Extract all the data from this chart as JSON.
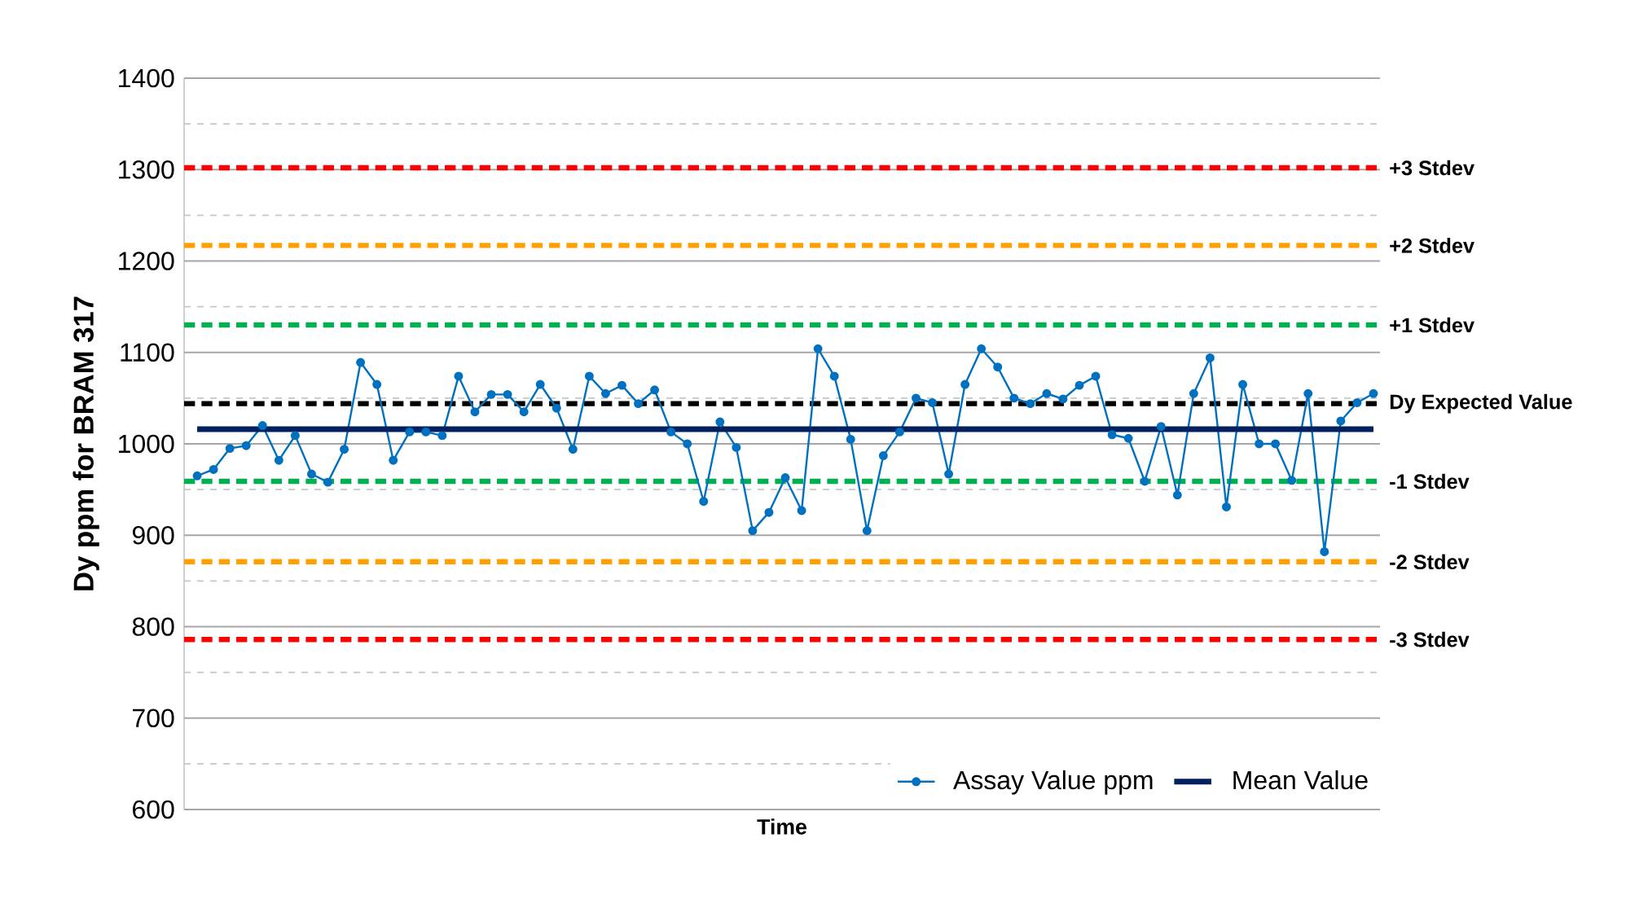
{
  "chart_data": {
    "type": "line",
    "xlabel": "Time",
    "ylabel": "Dy ppm for BRAM 317",
    "categories": [
      null,
      null,
      null,
      null,
      null,
      null,
      null,
      null,
      null,
      null,
      null,
      null,
      null,
      null,
      null,
      null,
      null,
      null,
      null,
      null,
      null,
      null,
      null,
      null,
      null,
      null,
      null,
      null,
      null,
      null,
      null,
      null,
      null,
      null,
      null,
      null,
      null,
      null,
      null,
      null,
      null,
      null,
      null,
      null,
      null,
      null,
      null,
      null,
      null,
      null,
      null,
      null,
      null,
      null,
      null,
      null,
      null,
      null,
      null,
      null,
      null,
      null,
      null,
      null,
      null,
      null,
      null,
      null,
      null,
      null,
      null,
      null,
      null
    ],
    "series": [
      {
        "name": "Assay Value ppm",
        "color": "#0070c0",
        "marker": "circle",
        "values": [
          965,
          972,
          995,
          998,
          1020,
          982,
          1009,
          967,
          958,
          994,
          1089,
          1065,
          982,
          1013,
          1013,
          1009,
          1074,
          1035,
          1054,
          1054,
          1035,
          1065,
          1039,
          994,
          1074,
          1055,
          1064,
          1044,
          1059,
          1013,
          1000,
          937,
          1024,
          996,
          905,
          925,
          963,
          927,
          1104,
          1074,
          1005,
          905,
          987,
          1013,
          1050,
          1045,
          967,
          1065,
          1104,
          1084,
          1050,
          1044,
          1055,
          1049,
          1064,
          1074,
          1010,
          1006,
          959,
          1019,
          944,
          1055,
          1094,
          931,
          1065,
          1000,
          1000,
          960,
          1055,
          882,
          1025,
          1045,
          1055
        ]
      },
      {
        "name": "Mean Value",
        "color": "#002060",
        "marker": "none",
        "values": [
          1016,
          1016,
          1016,
          1016,
          1016,
          1016,
          1016,
          1016,
          1016,
          1016,
          1016,
          1016,
          1016,
          1016,
          1016,
          1016,
          1016,
          1016,
          1016,
          1016,
          1016,
          1016,
          1016,
          1016,
          1016,
          1016,
          1016,
          1016,
          1016,
          1016,
          1016,
          1016,
          1016,
          1016,
          1016,
          1016,
          1016,
          1016,
          1016,
          1016,
          1016,
          1016,
          1016,
          1016,
          1016,
          1016,
          1016,
          1016,
          1016,
          1016,
          1016,
          1016,
          1016,
          1016,
          1016,
          1016,
          1016,
          1016,
          1016,
          1016,
          1016,
          1016,
          1016,
          1016,
          1016,
          1016,
          1016,
          1016,
          1016,
          1016,
          1016,
          1016,
          1016
        ]
      }
    ],
    "ylim": [
      600,
      1400
    ],
    "yticks": [
      600,
      {
        "value": 650,
        "label": null
      },
      700,
      {
        "value": 750,
        "label": null
      },
      800,
      {
        "value": 850,
        "label": null
      },
      900,
      {
        "value": 950,
        "label": null
      },
      1000,
      {
        "value": 1050,
        "label": null
      },
      1100,
      {
        "value": 1150,
        "label": null
      },
      1200,
      {
        "value": 1250,
        "label": null
      },
      1300,
      {
        "value": 1350,
        "label": null
      },
      1400
    ],
    "ref_lines": [
      {
        "axis": "y",
        "value": 1302,
        "label": "+3 Stdev",
        "color": "#ff0000",
        "line_style": "dashed"
      },
      {
        "axis": "y",
        "value": 1217,
        "label": "+2 Stdev",
        "color": "#ffa000",
        "line_style": "dashed"
      },
      {
        "axis": "y",
        "value": 1130,
        "label": "+1 Stdev",
        "color": "#00b050",
        "line_style": "dashed"
      },
      {
        "axis": "y",
        "value": 1044,
        "label": "Dy Expected Value",
        "color": "#000000",
        "line_style": "dashed"
      },
      {
        "axis": "y",
        "value": 959,
        "label": "-1 Stdev",
        "color": "#00b050",
        "line_style": "dashed"
      },
      {
        "axis": "y",
        "value": 871,
        "label": "-2 Stdev",
        "color": "#ffa000",
        "line_style": "dashed"
      },
      {
        "axis": "y",
        "value": 786,
        "label": "-3 Stdev",
        "color": "#ff0000",
        "line_style": "dashed"
      }
    ],
    "grid": "y",
    "legend": "bottom right",
    "tick_labels": "y"
  }
}
